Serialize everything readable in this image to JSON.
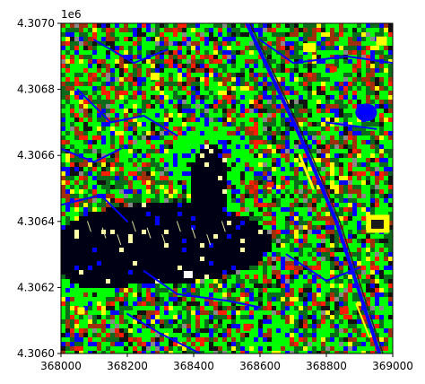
{
  "chart_data": {
    "type": "heatmap",
    "title": "",
    "xlabel": "",
    "ylabel": "",
    "xlim": [
      368000,
      369000
    ],
    "ylim": [
      4306000,
      4307000
    ],
    "y_offset_text": "1e6",
    "x_ticks": [
      368000,
      368200,
      368400,
      368600,
      368800,
      369000
    ],
    "x_tick_labels": [
      "368000",
      "368200",
      "368400",
      "368600",
      "368800",
      "369000"
    ],
    "y_ticks": [
      4306000,
      4306200,
      4306400,
      4306600,
      4306800,
      4307000
    ],
    "y_tick_labels": [
      "4.3060",
      "4.3062",
      "4.3064",
      "4.3066",
      "4.3068",
      "4.3070"
    ],
    "grid": false,
    "legend": "none",
    "colors": {
      "vegetation": "#00ff00",
      "vegetation_dark": "#0b6b1a",
      "water_shadow": "#0000ff",
      "water_dark": "#000014",
      "buildings_red": "#ff1e00",
      "impervious_yellow": "#ffff00",
      "texture_red_brown": "#a0300c"
    },
    "class_description": "land-cover classification raster (RGB)"
  }
}
